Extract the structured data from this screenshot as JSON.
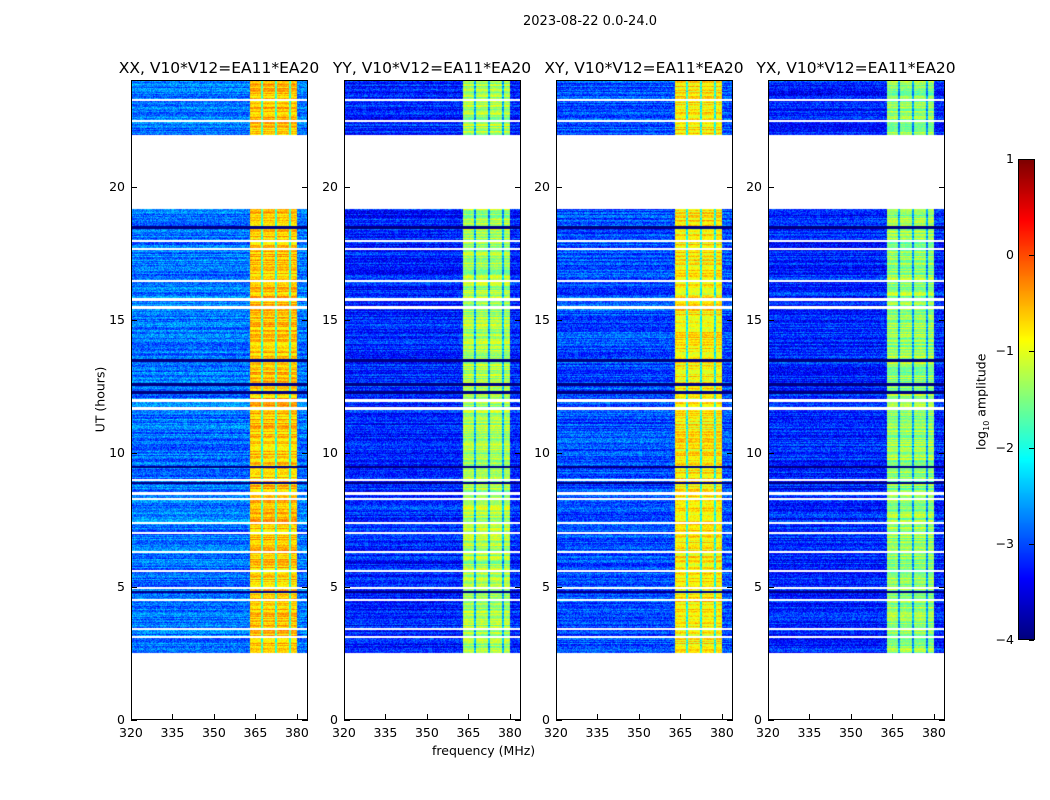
{
  "suptitle": "2023-08-22 0.0-24.0",
  "chart_data": {
    "type": "heatmap",
    "xlabel": "frequency (MHz)",
    "ylabel": "UT (hours)",
    "xlim": [
      320,
      384
    ],
    "ylim": [
      0,
      24
    ],
    "xticks": [
      "320",
      "335",
      "350",
      "365",
      "380"
    ],
    "xtick_values": [
      320,
      335,
      350,
      365,
      380
    ],
    "yticks": [
      "0",
      "5",
      "10",
      "15",
      "20"
    ],
    "ytick_values": [
      0,
      5,
      10,
      15,
      20
    ],
    "colormap": "jet",
    "colorbar": {
      "label_prefix": "log",
      "label_sub": "10",
      "label_suffix": " amplitude",
      "range": [
        -4,
        1
      ],
      "ticks": [
        "1",
        "0",
        "−1",
        "−2",
        "−3",
        "−4"
      ],
      "tick_values": [
        1,
        0,
        -1,
        -2,
        -3,
        -4
      ]
    },
    "time_coverage_hours": [
      [
        2.5,
        19.2
      ],
      [
        22.0,
        24.0
      ]
    ],
    "bright_band_mhz": [
      363,
      380
    ],
    "band_gaps_mhz": [
      367.5,
      372.5,
      377.5
    ],
    "flagged_white_hours": [
      3.1,
      3.4,
      4.5,
      4.95,
      5.6,
      6.3,
      7.0,
      7.4,
      8.3,
      8.5,
      9.0,
      11.7,
      12.0,
      15.5,
      15.8,
      16.5,
      17.7,
      18.0,
      22.5,
      23.3
    ],
    "dark_rows_hours": [
      4.8,
      8.9,
      9.5,
      12.3,
      12.6,
      13.5,
      18.5
    ],
    "panels": [
      {
        "title": "XX, V10*V12=EA11*EA20",
        "background_level": -2.8,
        "band_level": -0.6
      },
      {
        "title": "YY, V10*V12=EA11*EA20",
        "background_level": -3.2,
        "band_level": -1.3
      },
      {
        "title": "XY, V10*V12=EA11*EA20",
        "background_level": -3.0,
        "band_level": -0.8
      },
      {
        "title": "YX, V10*V12=EA11*EA20",
        "background_level": -3.2,
        "band_level": -1.4
      }
    ]
  }
}
